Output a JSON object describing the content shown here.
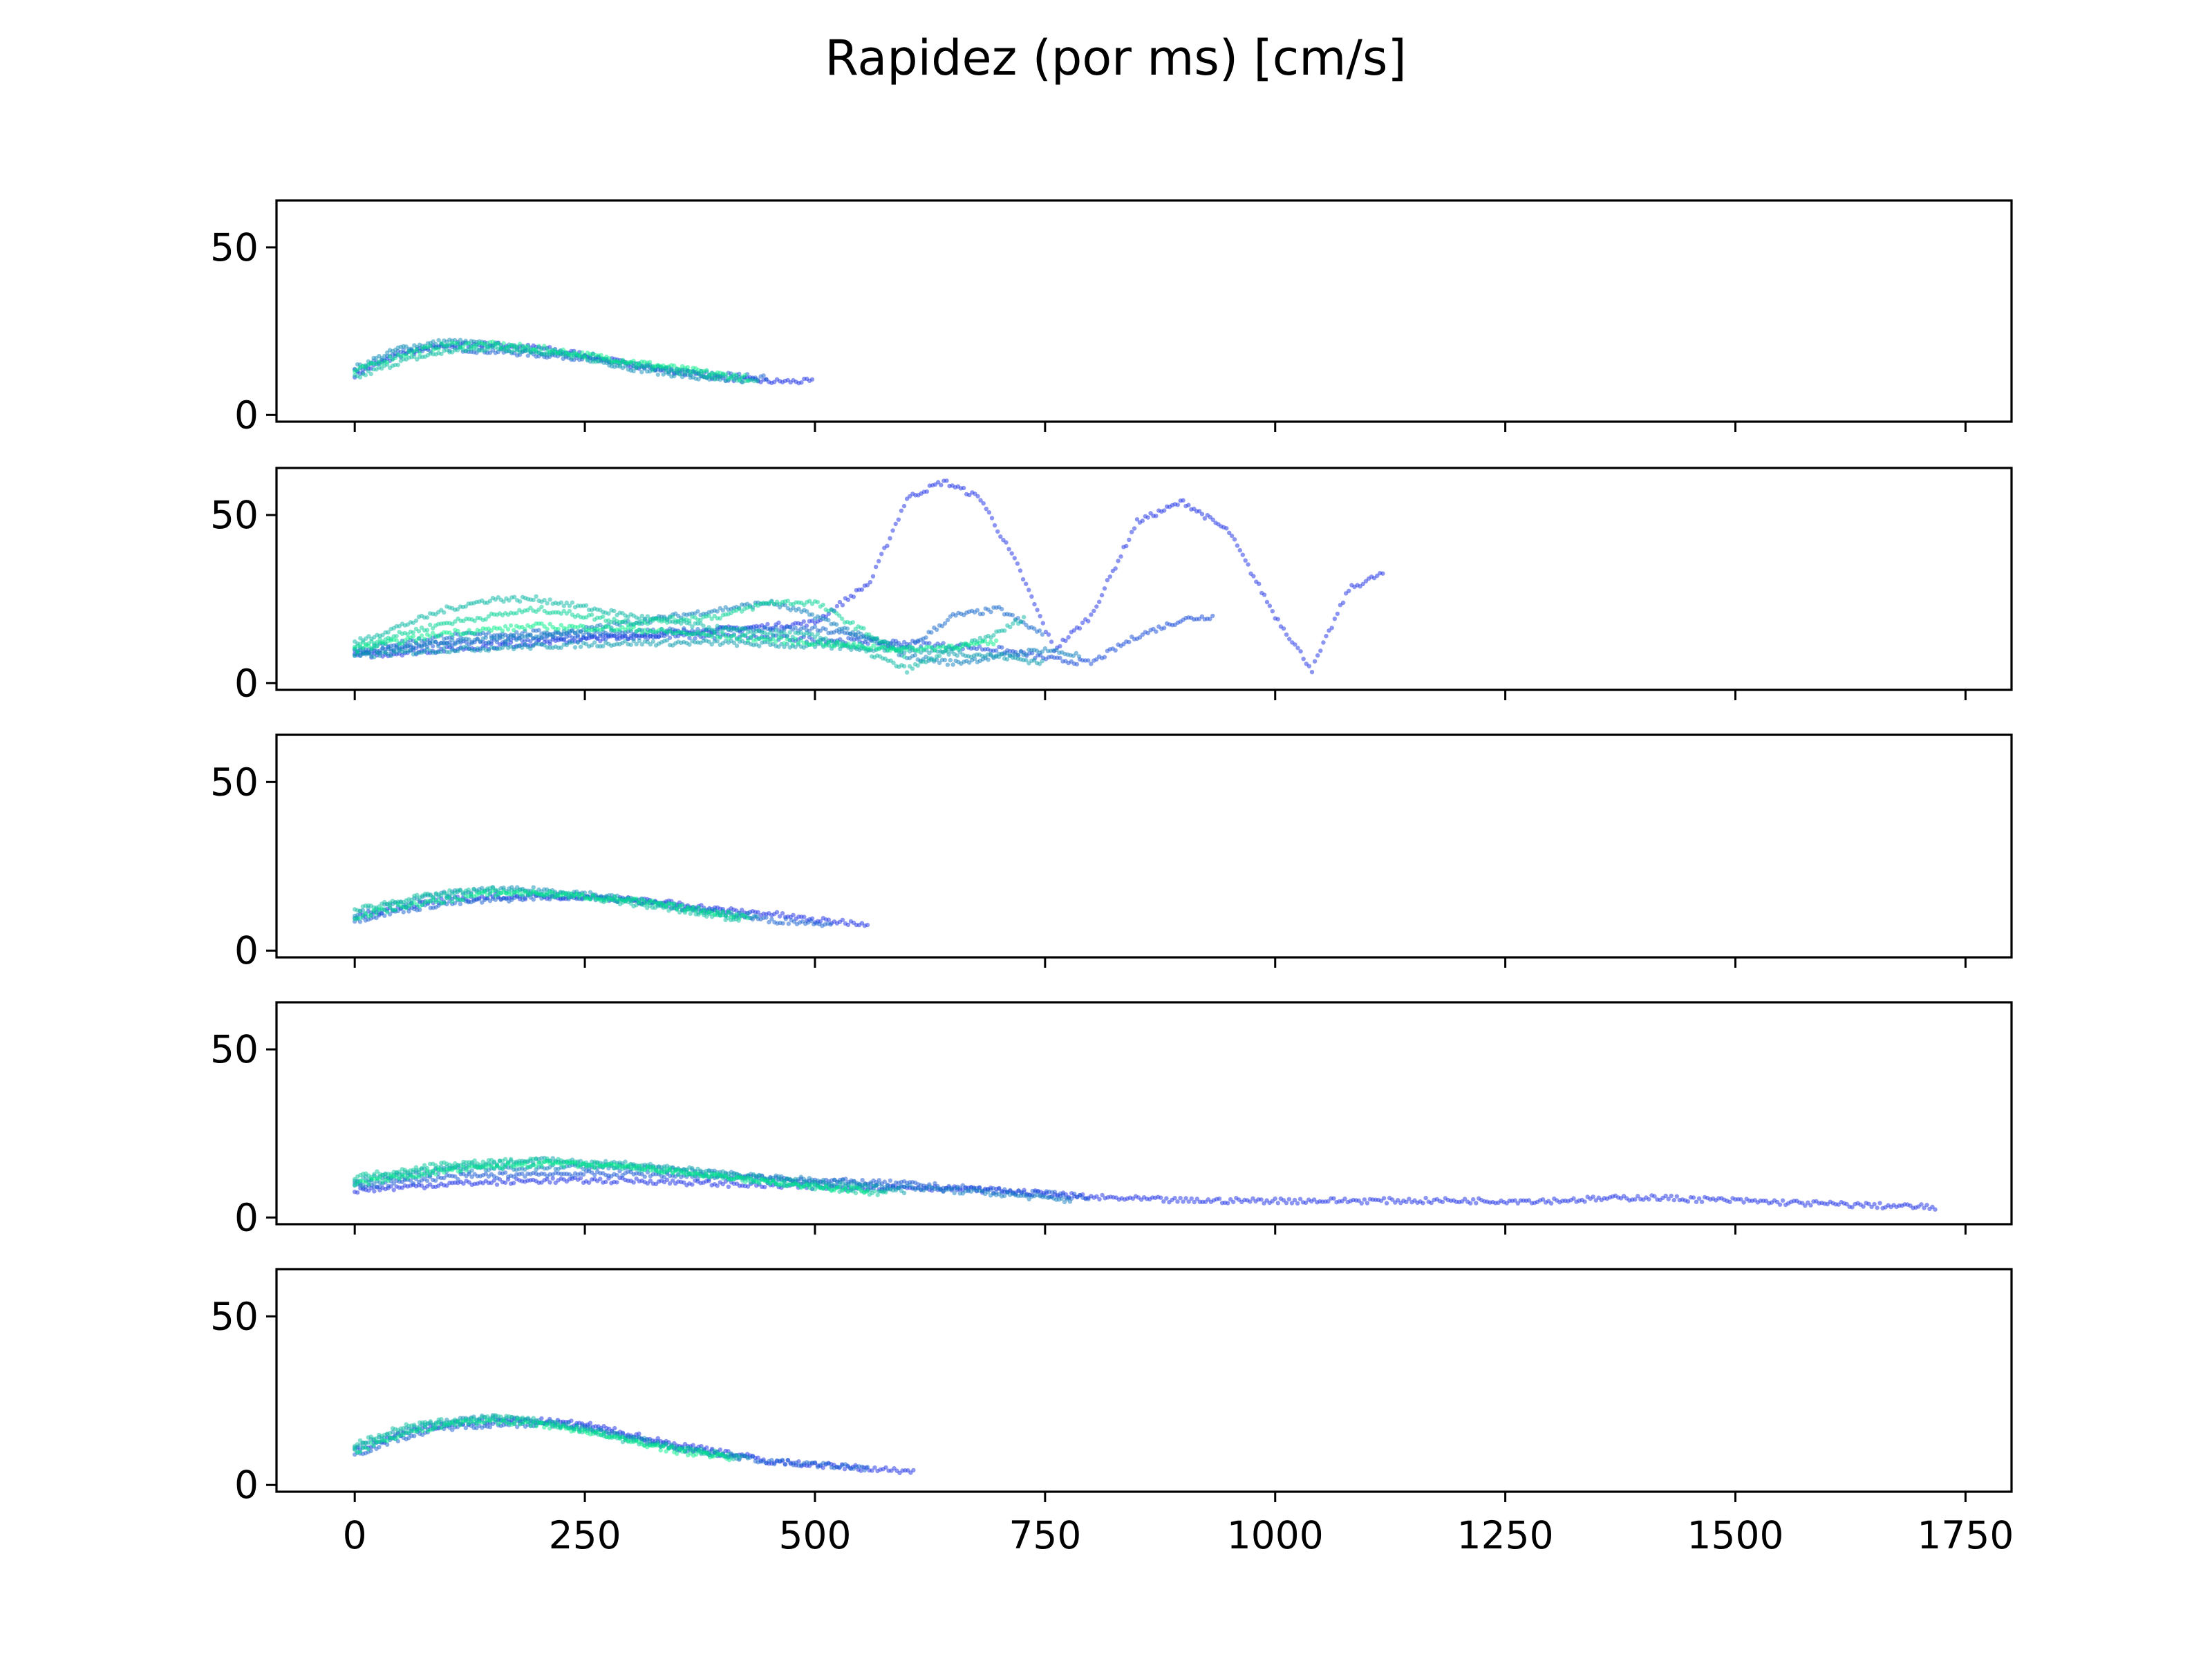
{
  "chart_data": {
    "type": "scatter",
    "title": "Rapidez (por ms) [cm/s]",
    "xlabel": "",
    "ylabel": "",
    "xlim": [
      -85,
      1800
    ],
    "ylim": [
      -2,
      64
    ],
    "x_ticks": [
      0,
      250,
      500,
      750,
      1000,
      1250,
      1500,
      1750
    ],
    "x_tick_labels": [
      "0",
      "250",
      "500",
      "750",
      "1000",
      "1250",
      "1500",
      "1750"
    ],
    "y_ticks": [
      0,
      50
    ],
    "y_tick_labels": [
      "0",
      "50"
    ],
    "shared_x": true,
    "grid": false,
    "legend": "none",
    "colors": {
      "early_trial": "#00ee88",
      "late_trial": "#1a2ee6",
      "axis": "#000000"
    },
    "panels": [
      {
        "series": [
          {
            "x": [
              0,
              50,
              100,
              150,
              200,
              250,
              300,
              350,
              400,
              450,
              500
            ],
            "y": [
              12,
              18,
              21,
              21,
              20,
              18,
              15,
              13,
              11,
              10,
              10
            ]
          },
          {
            "x": [
              0,
              50,
              100,
              150,
              200,
              250,
              300,
              350,
              400,
              450
            ],
            "y": [
              13,
              19,
              20,
              19,
              18,
              17,
              15,
              13,
              12,
              11
            ]
          },
          {
            "x": [
              0,
              50,
              100,
              150,
              200,
              250,
              300,
              350,
              400
            ],
            "y": [
              14,
              20,
              22,
              21,
              19,
              17,
              14,
              12,
              10
            ]
          },
          {
            "x": [
              0,
              50,
              100,
              150,
              200,
              250,
              300,
              350,
              400,
              440
            ],
            "y": [
              11,
              16,
              19,
              20,
              19,
              17,
              15,
              13,
              11,
              10
            ]
          },
          {
            "x": [
              0,
              50,
              100,
              150,
              200,
              250,
              300,
              350,
              400,
              430
            ],
            "y": [
              13,
              18,
              21,
              21,
              20,
              18,
              16,
              14,
              12,
              11
            ]
          }
        ]
      },
      {
        "series": [
          {
            "x": [
              0,
              100,
              200,
              300,
              400,
              500,
              560,
              600,
              640,
              680,
              720,
              760,
              800,
              850,
              900,
              950,
              1000,
              1040,
              1080,
              1120
            ],
            "y": [
              8,
              10,
              12,
              14,
              16,
              18,
              30,
              55,
              60,
              55,
              35,
              10,
              20,
              48,
              54,
              45,
              20,
              4,
              28,
              33
            ]
          },
          {
            "x": [
              0,
              100,
              200,
              300,
              400,
              500,
              600,
              700,
              760,
              800,
              850,
              900,
              935
            ],
            "y": [
              9,
              12,
              13,
              14,
              14,
              13,
              12,
              10,
              7,
              6,
              14,
              19,
              20
            ]
          },
          {
            "x": [
              0,
              100,
              200,
              300,
              400,
              500,
              550,
              600,
              650,
              700,
              750
            ],
            "y": [
              10,
              14,
              15,
              15,
              16,
              16,
              14,
              10,
              20,
              22,
              14
            ]
          },
          {
            "x": [
              0,
              100,
              200,
              300,
              400,
              450,
              500,
              550,
              600,
              650,
              700,
              750,
              790
            ],
            "y": [
              9,
              12,
              14,
              18,
              22,
              24,
              20,
              14,
              8,
              6,
              8,
              10,
              8
            ]
          },
          {
            "x": [
              0,
              100,
              200,
              300,
              400,
              500,
              600,
              700,
              750
            ],
            "y": [
              8,
              10,
              11,
              12,
              12,
              11,
              10,
              8,
              6
            ]
          },
          {
            "x": [
              0,
              100,
              150,
              200,
              300,
              400,
              500,
              550,
              600,
              650,
              700,
              730
            ],
            "y": [
              12,
              22,
              25,
              25,
              20,
              16,
              14,
              10,
              4,
              10,
              15,
              20
            ]
          },
          {
            "x": [
              0,
              100,
              200,
              300,
              400,
              450,
              500,
              550,
              600
            ],
            "y": [
              11,
              18,
              22,
              18,
              20,
              24,
              24,
              16,
              8
            ]
          },
          {
            "x": [
              0,
              100,
              200,
              300,
              400,
              500,
              600,
              700
            ],
            "y": [
              10,
              15,
              17,
              16,
              14,
              12,
              10,
              12
            ]
          }
        ]
      },
      {
        "series": [
          {
            "x": [
              0,
              50,
              100,
              150,
              200,
              250,
              300,
              350,
              400,
              450,
              500,
              560
            ],
            "y": [
              10,
              13,
              15,
              16,
              16,
              16,
              15,
              14,
              12,
              11,
              9,
              8
            ]
          },
          {
            "x": [
              0,
              50,
              100,
              150,
              200,
              250,
              300,
              350,
              400,
              450,
              520
            ],
            "y": [
              9,
              12,
              14,
              15,
              16,
              16,
              15,
              13,
              11,
              9,
              8
            ]
          },
          {
            "x": [
              0,
              50,
              100,
              150,
              200,
              250,
              300,
              350,
              400,
              440
            ],
            "y": [
              11,
              14,
              17,
              18,
              18,
              17,
              15,
              13,
              11,
              10
            ]
          },
          {
            "x": [
              0,
              50,
              100,
              150,
              200,
              250,
              300,
              350,
              400,
              420
            ],
            "y": [
              12,
              15,
              17,
              18,
              17,
              16,
              14,
              12,
              10,
              9
            ]
          },
          {
            "x": [
              0,
              50,
              100,
              150,
              200,
              250,
              300,
              350,
              400,
              430
            ],
            "y": [
              10,
              13,
              15,
              17,
              17,
              16,
              15,
              13,
              11,
              10
            ]
          }
        ]
      },
      {
        "series": [
          {
            "x": [
              0,
              100,
              200,
              300,
              400,
              500,
              600,
              700,
              800,
              900,
              1000,
              1100,
              1200,
              1300,
              1400,
              1500,
              1600,
              1720
            ],
            "y": [
              8,
              10,
              11,
              11,
              10,
              9,
              9,
              8,
              6,
              5,
              5,
              5,
              5,
              5,
              6,
              5,
              4,
              3
            ]
          },
          {
            "x": [
              0,
              100,
              200,
              300,
              400,
              500,
              600,
              700,
              800
            ],
            "y": [
              9,
              12,
              13,
              13,
              12,
              11,
              10,
              8,
              6
            ]
          },
          {
            "x": [
              0,
              100,
              200,
              300,
              400,
              500,
              600,
              700,
              780
            ],
            "y": [
              10,
              14,
              15,
              15,
              13,
              11,
              9,
              7,
              5
            ]
          },
          {
            "x": [
              0,
              100,
              200,
              300,
              400,
              500,
              600
            ],
            "y": [
              11,
              15,
              17,
              16,
              13,
              10,
              8
            ]
          },
          {
            "x": [
              0,
              100,
              200,
              300,
              400,
              500,
              580
            ],
            "y": [
              12,
              16,
              17,
              15,
              12,
              9,
              7
            ]
          },
          {
            "x": [
              0,
              100,
              200,
              300,
              400,
              500,
              560
            ],
            "y": [
              10,
              14,
              16,
              15,
              12,
              9,
              8
            ]
          }
        ]
      },
      {
        "series": [
          {
            "x": [
              0,
              50,
              100,
              150,
              200,
              250,
              300,
              350,
              400,
              450,
              500,
              550,
              610
            ],
            "y": [
              10,
              15,
              18,
              19,
              19,
              18,
              15,
              12,
              10,
              7,
              6,
              5,
              4
            ]
          },
          {
            "x": [
              0,
              50,
              100,
              150,
              200,
              250,
              300,
              350,
              400,
              450,
              500,
              560
            ],
            "y": [
              9,
              14,
              17,
              18,
              18,
              17,
              14,
              11,
              9,
              7,
              6,
              5
            ]
          },
          {
            "x": [
              0,
              50,
              100,
              150,
              200,
              250,
              300,
              350,
              400,
              430
            ],
            "y": [
              11,
              16,
              19,
              20,
              19,
              17,
              14,
              11,
              9,
              8
            ]
          },
          {
            "x": [
              0,
              50,
              100,
              150,
              200,
              250,
              300,
              350,
              400,
              420
            ],
            "y": [
              12,
              17,
              19,
              20,
              19,
              16,
              13,
              11,
              9,
              8
            ]
          },
          {
            "x": [
              0,
              50,
              100,
              150,
              200,
              250,
              300,
              350,
              410
            ],
            "y": [
              10,
              15,
              18,
              19,
              18,
              16,
              13,
              10,
              8
            ]
          }
        ]
      }
    ]
  }
}
